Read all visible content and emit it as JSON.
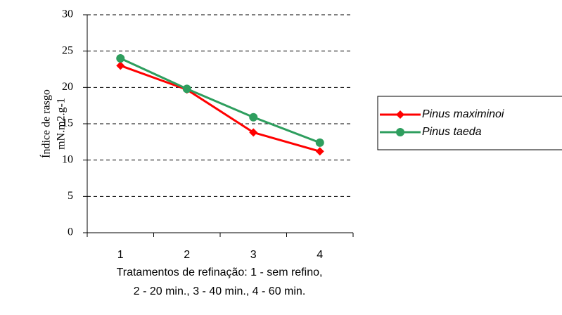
{
  "chart_data": {
    "type": "line",
    "y_label": [
      "Índice de rasgo",
      "mN.m2.g-1"
    ],
    "x_label": [
      "Tratamentos de refinação: 1 - sem refino,",
      "2 - 20 min., 3 - 40 min., 4 - 60 min."
    ],
    "categories": [
      "1",
      "2",
      "3",
      "4"
    ],
    "series": [
      {
        "name": "Pinus maximinoi",
        "color": "#ff0000",
        "marker": "diamond",
        "values": [
          23,
          19.7,
          13.8,
          11.2
        ]
      },
      {
        "name": "Pinus taeda",
        "color": "#2e9e5e",
        "marker": "circle",
        "values": [
          24,
          19.8,
          15.9,
          12.4
        ]
      }
    ],
    "ylim": [
      0,
      30
    ],
    "yticks": [
      0,
      5,
      10,
      15,
      20,
      25,
      30
    ],
    "grid": true,
    "legend": "right"
  }
}
